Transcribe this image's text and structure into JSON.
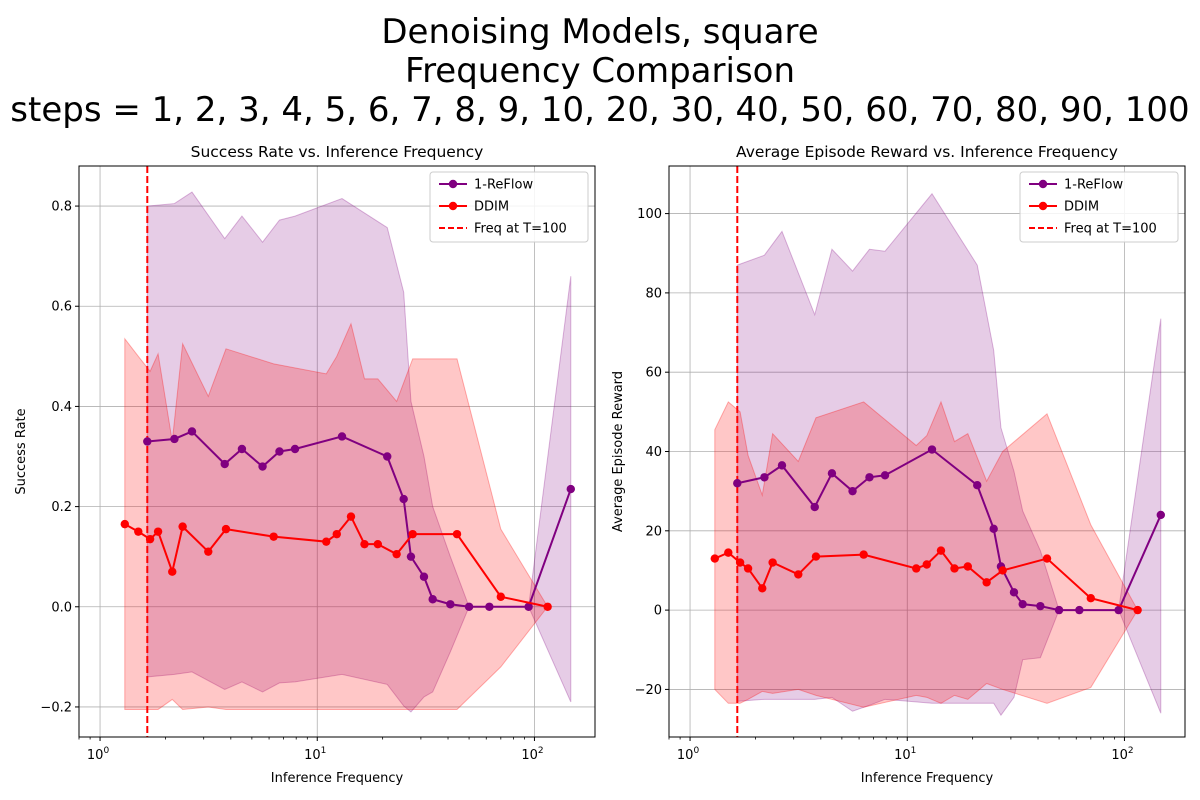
{
  "figure": {
    "title_lines": [
      "Denoising Models, square",
      "Frequency Comparison",
      "steps = 1, 2, 3, 4, 5, 6, 7, 8, 9, 10, 20, 30, 40, 50, 60, 70, 80, 90, 100"
    ]
  },
  "chart_data": [
    {
      "type": "line",
      "title": "Success Rate vs. Inference Frequency",
      "xlabel": "Inference Frequency",
      "ylabel": "Success Rate",
      "xscale": "log",
      "xlim": [
        0.8,
        190
      ],
      "ylim": [
        -0.26,
        0.88
      ],
      "xticks": [
        1,
        10,
        100
      ],
      "yticks": [
        -0.2,
        0.0,
        0.2,
        0.4,
        0.6,
        0.8
      ],
      "grid": true,
      "legend": "top-right",
      "legend_entries": [
        "1-ReFlow",
        "DDIM",
        "Freq at T=100"
      ],
      "vline": {
        "x": 1.65,
        "label": "Freq at T=100",
        "color": "#ff0000",
        "style": "dashed"
      },
      "series": [
        {
          "name": "1-ReFlow",
          "color": "#800080",
          "x": [
            1.65,
            2.2,
            2.65,
            3.75,
            4.5,
            5.6,
            6.7,
            7.9,
            13,
            21,
            25,
            27,
            31,
            34,
            41,
            50,
            62,
            94,
            147
          ],
          "y": [
            0.33,
            0.335,
            0.35,
            0.285,
            0.315,
            0.28,
            0.31,
            0.315,
            0.34,
            0.3,
            0.215,
            0.1,
            0.06,
            0.015,
            0.005,
            0.0,
            0.0,
            0.0,
            0.235
          ],
          "upper": [
            0.8,
            0.805,
            0.828,
            0.735,
            0.78,
            0.728,
            0.772,
            0.78,
            0.815,
            0.757,
            0.628,
            0.41,
            0.3,
            0.2,
            0.1,
            0.0,
            0.0,
            0.0,
            0.66
          ],
          "lower": [
            -0.14,
            -0.135,
            -0.13,
            -0.165,
            -0.15,
            -0.17,
            -0.152,
            -0.15,
            -0.135,
            -0.155,
            -0.198,
            -0.21,
            -0.18,
            -0.17,
            -0.09,
            0.0,
            0.0,
            0.0,
            -0.19
          ]
        },
        {
          "name": "DDIM",
          "color": "#ff0000",
          "x": [
            1.3,
            1.5,
            1.7,
            1.85,
            2.15,
            2.4,
            3.15,
            3.8,
            6.3,
            11,
            12.3,
            14.3,
            16.5,
            19,
            23.2,
            27.5,
            44,
            70,
            115
          ],
          "y": [
            0.165,
            0.15,
            0.135,
            0.15,
            0.07,
            0.16,
            0.11,
            0.155,
            0.14,
            0.13,
            0.145,
            0.18,
            0.125,
            0.125,
            0.105,
            0.145,
            0.145,
            0.02,
            0.0
          ],
          "upper": [
            0.535,
            0.5,
            0.47,
            0.505,
            0.33,
            0.525,
            0.42,
            0.515,
            0.485,
            0.465,
            0.5,
            0.565,
            0.455,
            0.455,
            0.41,
            0.495,
            0.495,
            0.155,
            0.0
          ],
          "lower": [
            -0.205,
            -0.205,
            -0.205,
            -0.205,
            -0.185,
            -0.205,
            -0.2,
            -0.205,
            -0.205,
            -0.205,
            -0.205,
            -0.205,
            -0.205,
            -0.205,
            -0.205,
            -0.205,
            -0.205,
            -0.12,
            0.0
          ]
        }
      ]
    },
    {
      "type": "line",
      "title": "Average Episode Reward vs. Inference Frequency",
      "xlabel": "Inference Frequency",
      "ylabel": "Average Episode Reward",
      "xscale": "log",
      "xlim": [
        0.8,
        190
      ],
      "ylim": [
        -32,
        112
      ],
      "xticks": [
        1,
        10,
        100
      ],
      "yticks": [
        -20,
        0,
        20,
        40,
        60,
        80,
        100
      ],
      "grid": true,
      "legend": "top-right",
      "legend_entries": [
        "1-ReFlow",
        "DDIM",
        "Freq at T=100"
      ],
      "vline": {
        "x": 1.65,
        "label": "Freq at T=100",
        "color": "#ff0000",
        "style": "dashed"
      },
      "series": [
        {
          "name": "1-ReFlow",
          "color": "#800080",
          "x": [
            1.65,
            2.2,
            2.65,
            3.75,
            4.5,
            5.6,
            6.7,
            7.9,
            13,
            21,
            25,
            27,
            31,
            34,
            41,
            50,
            62,
            94,
            147
          ],
          "y": [
            32,
            33.5,
            36.5,
            26,
            34.5,
            30,
            33.5,
            34,
            40.5,
            31.5,
            20.5,
            11,
            4.5,
            1.5,
            1.0,
            0.0,
            0.0,
            0.0,
            24
          ],
          "upper": [
            87,
            89.5,
            95.5,
            74.5,
            91,
            85.5,
            91,
            90.5,
            105,
            87,
            65.5,
            46,
            35,
            25,
            15,
            0.0,
            0.0,
            0.0,
            73.5
          ],
          "lower": [
            -23,
            -22.5,
            -22.5,
            -22.5,
            -22,
            -25.5,
            -24,
            -22.5,
            -23.5,
            -23.5,
            -23.5,
            -26.5,
            -22,
            -12.5,
            -12,
            0.0,
            0.0,
            0.0,
            -26
          ]
        },
        {
          "name": "DDIM",
          "color": "#ff0000",
          "x": [
            1.3,
            1.5,
            1.7,
            1.85,
            2.15,
            2.4,
            3.15,
            3.8,
            6.3,
            11,
            12.3,
            14.3,
            16.5,
            19,
            23.2,
            27.5,
            44,
            70,
            115
          ],
          "y": [
            13,
            14.5,
            12,
            10.5,
            5.5,
            12,
            9,
            13.5,
            14,
            10.5,
            11.5,
            15,
            10.5,
            11,
            7,
            10,
            13,
            3,
            0.0
          ],
          "upper": [
            45.5,
            52.5,
            50,
            39,
            29,
            44.5,
            37.5,
            48.5,
            52.5,
            41.5,
            44,
            52.5,
            42.5,
            44.5,
            32.5,
            40,
            49.5,
            21.5,
            0.0
          ],
          "lower": [
            -20,
            -23.5,
            -23.5,
            -22.5,
            -20.5,
            -21,
            -20,
            -21.5,
            -24.5,
            -21.5,
            -22,
            -23.5,
            -21.5,
            -22.5,
            -18.5,
            -20,
            -23.5,
            -19.5,
            0.0
          ]
        }
      ]
    }
  ]
}
